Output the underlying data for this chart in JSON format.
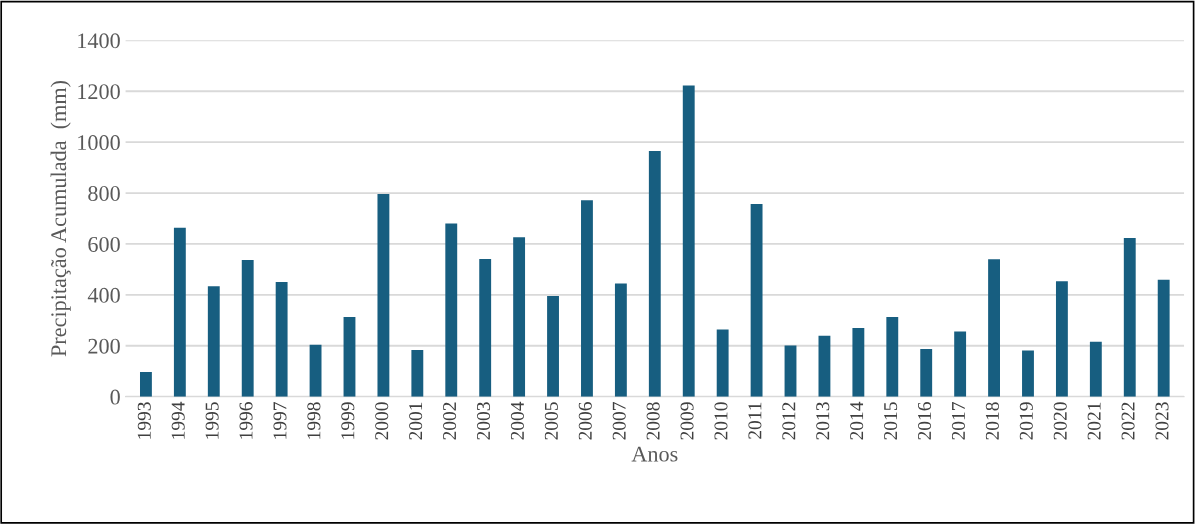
{
  "chart_data": {
    "type": "bar",
    "xlabel": "Anos",
    "ylabel": "Precipitação Acumulada  (mm)",
    "categories": [
      "1993",
      "1994",
      "1995",
      "1996",
      "1997",
      "1998",
      "1999",
      "2000",
      "2001",
      "2002",
      "2003",
      "2004",
      "2005",
      "2006",
      "2007",
      "2008",
      "2009",
      "2010",
      "2011",
      "2012",
      "2013",
      "2014",
      "2015",
      "2016",
      "2017",
      "2018",
      "2019",
      "2020",
      "2021",
      "2022",
      "2023"
    ],
    "values": [
      97,
      664,
      434,
      537,
      451,
      204,
      313,
      796,
      183,
      680,
      541,
      626,
      396,
      772,
      445,
      965,
      1223,
      264,
      757,
      201,
      239,
      270,
      313,
      187,
      256,
      540,
      181,
      453,
      216,
      623,
      459
    ],
    "color": "#175e80",
    "ylim": [
      0,
      1400
    ],
    "yticks": [
      0,
      200,
      400,
      600,
      800,
      1000,
      1200,
      1400
    ],
    "grid": "y"
  }
}
